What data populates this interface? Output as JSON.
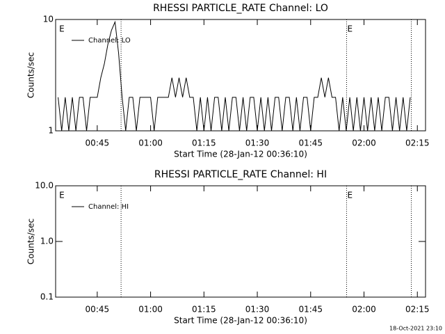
{
  "chart_data": [
    {
      "type": "line",
      "title": "RHESSI PARTICLE_RATE Channel: LO",
      "x_label": "Start Time (28-Jan-12 00:36:10)",
      "y_label": "Counts/sec",
      "log_y": true,
      "legend": "upper left",
      "xlim": [
        33.3,
        137.3
      ],
      "xticks": [
        {
          "value": 45,
          "label": "00:45"
        },
        {
          "value": 60,
          "label": "01:00"
        },
        {
          "value": 75,
          "label": "01:15"
        },
        {
          "value": 90,
          "label": "01:30"
        },
        {
          "value": 105,
          "label": "01:45"
        },
        {
          "value": 120,
          "label": "02:00"
        },
        {
          "value": 135,
          "label": "02:15"
        }
      ],
      "ylim": [
        1,
        10
      ],
      "yticks": [
        1,
        10
      ],
      "vlines": [
        51.7,
        115.1,
        133.3
      ],
      "annotations": [
        {
          "text": "E",
          "x": 34.1
        },
        {
          "text": "E",
          "x": 115.1
        }
      ],
      "series": [
        {
          "name": "Channel: LO",
          "color": "#000000",
          "x": [
            34,
            35,
            36,
            37,
            38,
            39,
            40,
            41,
            42,
            43,
            44,
            45,
            46,
            47,
            48,
            49,
            50,
            51,
            52,
            53,
            54,
            55,
            56,
            57,
            58,
            59,
            60,
            61,
            62,
            63,
            64,
            65,
            66,
            67,
            68,
            69,
            70,
            71,
            72,
            73,
            74,
            75,
            76,
            77,
            78,
            79,
            80,
            81,
            82,
            83,
            84,
            85,
            86,
            87,
            88,
            89,
            90,
            91,
            92,
            93,
            94,
            95,
            96,
            97,
            98,
            99,
            100,
            101,
            102,
            103,
            104,
            105,
            106,
            107,
            108,
            109,
            110,
            111,
            112,
            113,
            114,
            115,
            116,
            117,
            118,
            119,
            120,
            121,
            122,
            123,
            124,
            125,
            126,
            127,
            128,
            129,
            130,
            131,
            132,
            133
          ],
          "values": [
            2,
            1,
            2,
            1,
            2,
            1,
            2,
            2,
            1,
            2,
            2,
            2,
            3,
            4,
            6,
            8,
            9.5,
            5,
            2,
            1,
            2,
            2,
            1,
            2,
            2,
            2,
            2,
            1,
            2,
            2,
            2,
            2,
            3,
            2,
            3,
            2,
            3,
            2,
            2,
            1,
            2,
            1,
            2,
            1,
            2,
            2,
            1,
            2,
            1,
            2,
            2,
            1,
            2,
            1,
            2,
            2,
            1,
            2,
            1,
            2,
            1,
            2,
            2,
            1,
            2,
            2,
            1,
            2,
            1,
            2,
            2,
            1,
            2,
            2,
            3,
            2,
            3,
            2,
            2,
            1,
            2,
            1,
            2,
            1,
            2,
            1,
            2,
            1,
            2,
            1,
            2,
            1,
            2,
            2,
            1,
            2,
            1,
            2,
            1,
            2
          ]
        }
      ]
    },
    {
      "type": "line",
      "title": "RHESSI PARTICLE_RATE Channel: HI",
      "x_label": "Start Time (28-Jan-12 00:36:10)",
      "y_label": "Counts/sec",
      "log_y": true,
      "legend": "upper left",
      "xlim": [
        33.3,
        137.3
      ],
      "xticks": [
        {
          "value": 45,
          "label": "00:45"
        },
        {
          "value": 60,
          "label": "01:00"
        },
        {
          "value": 75,
          "label": "01:15"
        },
        {
          "value": 90,
          "label": "01:30"
        },
        {
          "value": 105,
          "label": "01:45"
        },
        {
          "value": 120,
          "label": "02:00"
        },
        {
          "value": 135,
          "label": "02:15"
        }
      ],
      "ylim": [
        0.1,
        10
      ],
      "yticks": [
        0.1,
        {
          "value": 1,
          "label": "1.0"
        },
        {
          "value": 10,
          "label": "10.0"
        }
      ],
      "vlines": [
        51.7,
        115.1,
        133.3
      ],
      "annotations": [
        {
          "text": "E",
          "x": 34.1
        },
        {
          "text": "E",
          "x": 115.1
        }
      ],
      "series": [
        {
          "name": "Channel: HI",
          "color": "#000000",
          "x": [],
          "values": []
        }
      ]
    }
  ],
  "timestamp": "18-Oct-2021 23:10"
}
